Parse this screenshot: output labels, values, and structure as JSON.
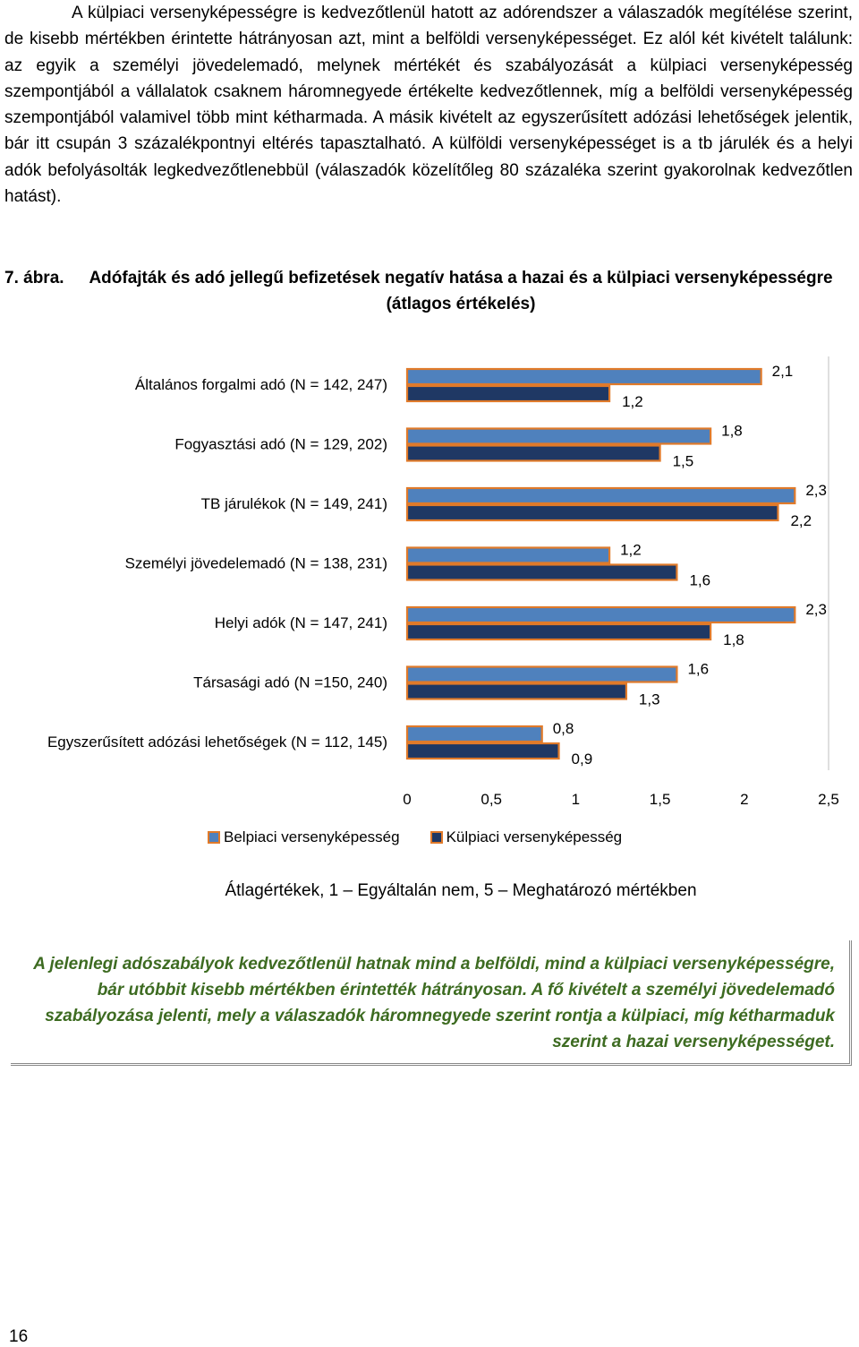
{
  "intro": {
    "paragraph": "A külpiaci versenyképességre is kedvezőtlenül hatott az adórendszer a válaszadók megítélése szerint, de kisebb mértékben érintette hátrányosan azt, mint a belföldi versenyképességet. Ez alól két kivételt találunk: az egyik a személyi jövedelemadó, melynek mértékét és szabályozását a külpiaci versenyképesség szempontjából a vállalatok csaknem háromnegyede értékelte kedvezőtlennek, míg a belföldi versenyképesség szempontjából valamivel több mint kétharmada. A másik kivételt az egyszerűsített adózási lehetőségek jelentik, bár itt csupán 3 százalékpontnyi eltérés tapasztalható. A külföldi versenyképességet is a tb járulék és a helyi adók befolyásolták legkedvezőtlenebbül (válaszadók közelítőleg 80 százaléka szerint gyakorolnak kedvezőtlen hatást)."
  },
  "figure": {
    "number": "7. ábra.",
    "title": "Adófajták és adó jellegű befizetések negatív hatása a hazai és a külpiaci versenyképességre (átlagos értékelés)"
  },
  "chart_data": {
    "type": "bar",
    "orientation": "horizontal",
    "categories": [
      "Általános forgalmi adó (N =  142, 247)",
      "Fogyasztási adó (N = 129,  202)",
      "TB járulékok (N = 149, 241)",
      "Személyi jövedelemadó (N = 138, 231)",
      "Helyi adók (N = 147, 241)",
      "Társasági adó (N =150, 240)",
      "Egyszerűsített adózási lehetőségek (N = 112, 145)"
    ],
    "series": [
      {
        "name": "Belpiaci versenyképesség",
        "values": [
          2.1,
          1.8,
          2.3,
          1.2,
          2.3,
          1.6,
          0.8
        ],
        "labels": [
          "2,1",
          "1,8",
          "2,3",
          "1,2",
          "2,3",
          "1,6",
          "0,8"
        ],
        "color": "#4F81BD"
      },
      {
        "name": "Külpiaci versenyképesség",
        "values": [
          1.2,
          1.5,
          2.2,
          1.6,
          1.8,
          1.3,
          0.9
        ],
        "labels": [
          "1,2",
          "1,5",
          "2,2",
          "1,6",
          "1,8",
          "1,3",
          "0,9"
        ],
        "color": "#1F3864"
      }
    ],
    "bar_outline_color": "#E07A2A",
    "xlim": [
      0,
      2.5
    ],
    "x_ticks": [
      0,
      0.5,
      1,
      1.5,
      2,
      2.5
    ],
    "x_tick_labels": [
      "0",
      "0,5",
      "1",
      "1,5",
      "2",
      "2,5"
    ],
    "xlabel": "Átlagértékek, 1 – Egyáltalán nem, 5 – Meghatározó mértékben",
    "legend_position": "bottom",
    "grid": false
  },
  "summary": {
    "text": "A jelenlegi adószabályok kedvezőtlenül hatnak mind a belföldi, mind a külpiaci versenyképességre, bár utóbbit kisebb mértékben érintették hátrányosan. A fő kivételt a személyi jövedelemadó szabályozása jelenti, mely a válaszadók háromnegyede szerint rontja a külpiaci, míg kétharmaduk szerint a hazai versenyképességet."
  },
  "page": {
    "number": "16"
  }
}
